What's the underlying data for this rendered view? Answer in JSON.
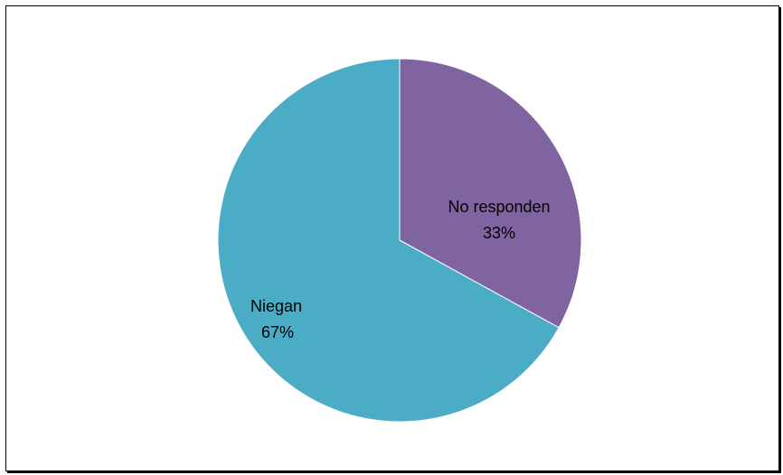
{
  "chart_data": {
    "type": "pie",
    "title": "",
    "slices": [
      {
        "label": "No responden",
        "value": 33,
        "percent_label": "33%",
        "color": "#8064A2"
      },
      {
        "label": "Niegan",
        "value": 67,
        "percent_label": "67%",
        "color": "#4BACC6"
      }
    ],
    "start_angle": "12 o'clock",
    "direction": "clockwise",
    "legend": "none",
    "labels_inside_slices": true
  }
}
